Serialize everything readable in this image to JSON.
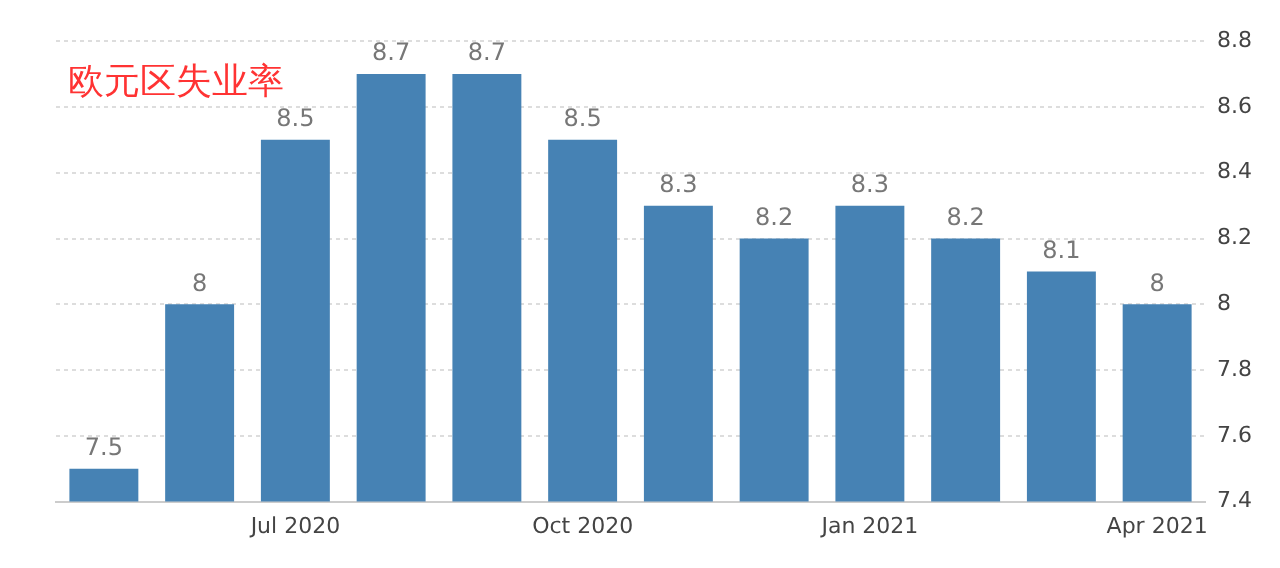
{
  "chart_data": {
    "type": "bar",
    "title": "欧元区失业率",
    "categories": [
      null,
      null,
      "Jul 2020",
      null,
      null,
      "Oct 2020",
      null,
      null,
      "Jan 2021",
      null,
      null,
      "Apr 2021"
    ],
    "values": [
      7.5,
      8,
      8.5,
      8.7,
      8.7,
      8.5,
      8.3,
      8.2,
      8.3,
      8.2,
      8.1,
      8
    ],
    "color": "#4682b4",
    "ylim": [
      7.4,
      8.8
    ],
    "yticks": [
      7.4,
      7.6,
      7.8,
      8,
      8.2,
      8.4,
      8.6,
      8.8
    ],
    "grid": "y",
    "data_labels": true,
    "legend": false
  }
}
